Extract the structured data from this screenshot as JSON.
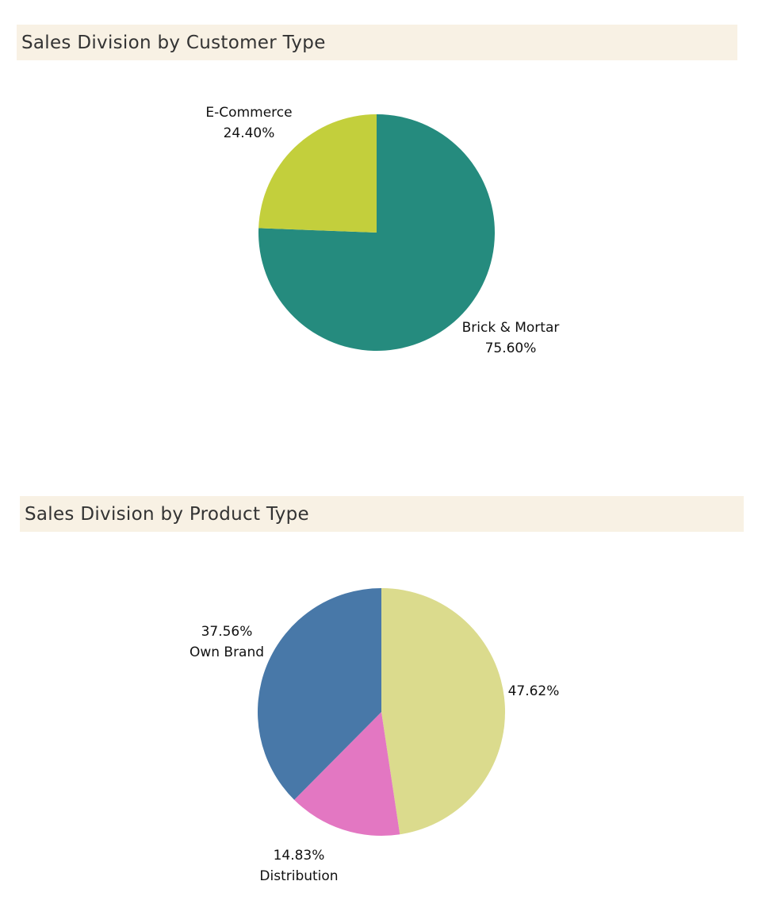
{
  "chart_data": [
    {
      "type": "pie",
      "title": "Sales Division by Customer Type",
      "slices": [
        {
          "name": "Brick & Mortar",
          "value": 75.6,
          "label_pct": "75.60%",
          "color": "#258b7e"
        },
        {
          "name": "E-Commerce",
          "value": 24.4,
          "label_pct": "24.40%",
          "color": "#c3cf3c"
        }
      ]
    },
    {
      "type": "pie",
      "title": "Sales Division by Product Type",
      "slices": [
        {
          "name": "",
          "value": 47.62,
          "label_pct": "47.62%",
          "color": "#dbdb8d"
        },
        {
          "name": "Distribution",
          "value": 14.83,
          "label_pct": "14.83%",
          "color": "#e377c2"
        },
        {
          "name": "Own Brand",
          "value": 37.56,
          "label_pct": "37.56%",
          "color": "#4878a8"
        }
      ]
    }
  ]
}
